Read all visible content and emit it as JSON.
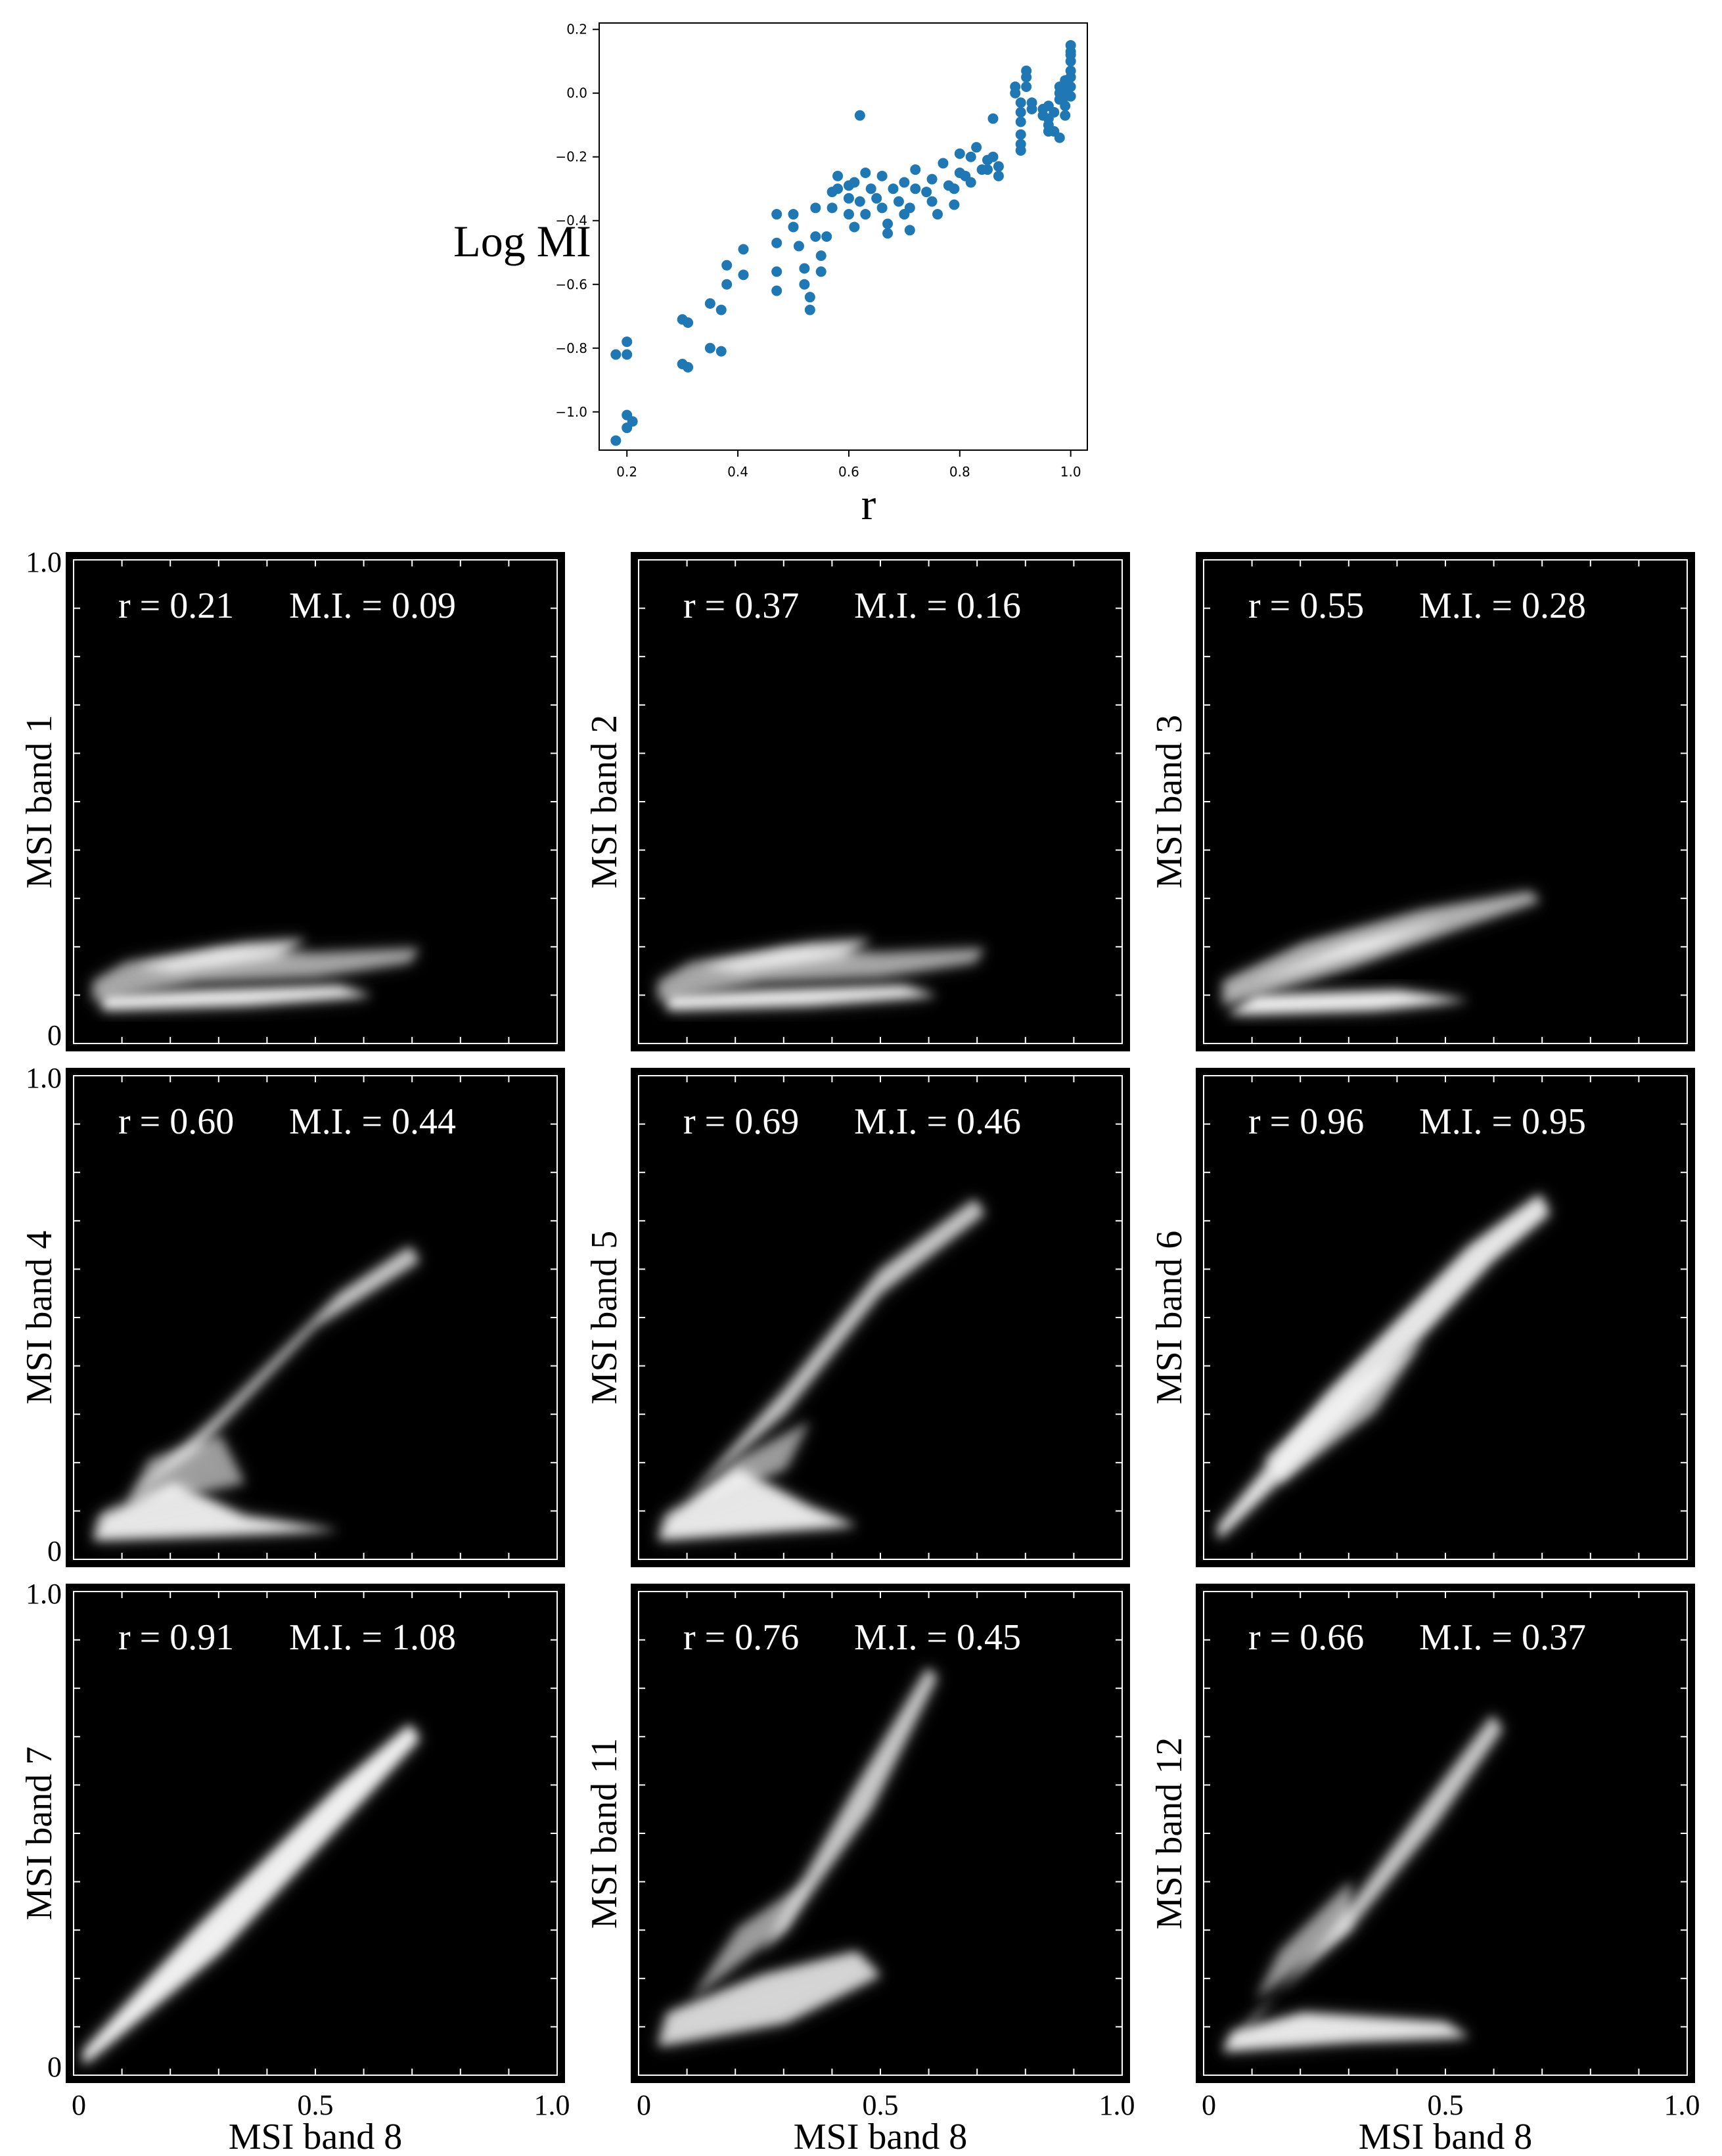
{
  "chart_data": [
    {
      "type": "scatter",
      "id": "summary",
      "xlabel": "r",
      "ylabel": "Log MI",
      "xlim": [
        0.15,
        1.03
      ],
      "ylim": [
        -1.12,
        0.22
      ],
      "xticks": [
        "0.2",
        "0.4",
        "0.6",
        "0.8",
        "1.0"
      ],
      "yticks": [
        "0.2",
        "0.0",
        "−0.2",
        "−0.4",
        "−0.6",
        "−0.8",
        "−1.0"
      ],
      "marker_color": "#1f77b4",
      "points": [
        [
          0.18,
          -1.09
        ],
        [
          0.18,
          -0.82
        ],
        [
          0.2,
          -0.78
        ],
        [
          0.2,
          -0.82
        ],
        [
          0.2,
          -1.01
        ],
        [
          0.2,
          -1.05
        ],
        [
          0.21,
          -1.03
        ],
        [
          0.3,
          -0.71
        ],
        [
          0.31,
          -0.72
        ],
        [
          0.3,
          -0.85
        ],
        [
          0.31,
          -0.86
        ],
        [
          0.35,
          -0.66
        ],
        [
          0.35,
          -0.8
        ],
        [
          0.37,
          -0.81
        ],
        [
          0.37,
          -0.68
        ],
        [
          0.38,
          -0.6
        ],
        [
          0.38,
          -0.54
        ],
        [
          0.41,
          -0.49
        ],
        [
          0.41,
          -0.57
        ],
        [
          0.47,
          -0.38
        ],
        [
          0.47,
          -0.47
        ],
        [
          0.47,
          -0.56
        ],
        [
          0.47,
          -0.62
        ],
        [
          0.5,
          -0.38
        ],
        [
          0.5,
          -0.42
        ],
        [
          0.51,
          -0.48
        ],
        [
          0.52,
          -0.55
        ],
        [
          0.52,
          -0.6
        ],
        [
          0.53,
          -0.64
        ],
        [
          0.53,
          -0.68
        ],
        [
          0.54,
          -0.36
        ],
        [
          0.54,
          -0.45
        ],
        [
          0.55,
          -0.51
        ],
        [
          0.55,
          -0.56
        ],
        [
          0.56,
          -0.45
        ],
        [
          0.57,
          -0.31
        ],
        [
          0.57,
          -0.36
        ],
        [
          0.58,
          -0.26
        ],
        [
          0.58,
          -0.3
        ],
        [
          0.6,
          -0.29
        ],
        [
          0.6,
          -0.33
        ],
        [
          0.6,
          -0.38
        ],
        [
          0.61,
          -0.42
        ],
        [
          0.61,
          -0.28
        ],
        [
          0.62,
          -0.07
        ],
        [
          0.62,
          -0.34
        ],
        [
          0.63,
          -0.38
        ],
        [
          0.63,
          -0.25
        ],
        [
          0.64,
          -0.3
        ],
        [
          0.65,
          -0.33
        ],
        [
          0.66,
          -0.26
        ],
        [
          0.66,
          -0.36
        ],
        [
          0.67,
          -0.41
        ],
        [
          0.67,
          -0.44
        ],
        [
          0.68,
          -0.3
        ],
        [
          0.69,
          -0.34
        ],
        [
          0.7,
          -0.28
        ],
        [
          0.7,
          -0.38
        ],
        [
          0.71,
          -0.36
        ],
        [
          0.71,
          -0.43
        ],
        [
          0.72,
          -0.24
        ],
        [
          0.72,
          -0.3
        ],
        [
          0.74,
          -0.31
        ],
        [
          0.75,
          -0.34
        ],
        [
          0.75,
          -0.27
        ],
        [
          0.76,
          -0.38
        ],
        [
          0.77,
          -0.22
        ],
        [
          0.78,
          -0.29
        ],
        [
          0.79,
          -0.3
        ],
        [
          0.79,
          -0.35
        ],
        [
          0.8,
          -0.25
        ],
        [
          0.8,
          -0.19
        ],
        [
          0.81,
          -0.26
        ],
        [
          0.82,
          -0.28
        ],
        [
          0.82,
          -0.2
        ],
        [
          0.83,
          -0.17
        ],
        [
          0.84,
          -0.24
        ],
        [
          0.85,
          -0.24
        ],
        [
          0.85,
          -0.21
        ],
        [
          0.86,
          -0.08
        ],
        [
          0.86,
          -0.2
        ],
        [
          0.87,
          -0.23
        ],
        [
          0.87,
          -0.26
        ],
        [
          0.9,
          0.02
        ],
        [
          0.9,
          0.0
        ],
        [
          0.91,
          -0.03
        ],
        [
          0.91,
          -0.06
        ],
        [
          0.91,
          -0.09
        ],
        [
          0.91,
          -0.13
        ],
        [
          0.91,
          -0.16
        ],
        [
          0.91,
          -0.18
        ],
        [
          0.92,
          0.05
        ],
        [
          0.92,
          0.07
        ],
        [
          0.92,
          0.02
        ],
        [
          0.93,
          -0.03
        ],
        [
          0.93,
          -0.05
        ],
        [
          0.95,
          -0.05
        ],
        [
          0.95,
          -0.07
        ],
        [
          0.96,
          -0.08
        ],
        [
          0.96,
          -0.1
        ],
        [
          0.96,
          -0.12
        ],
        [
          0.96,
          -0.04
        ],
        [
          0.97,
          -0.06
        ],
        [
          0.97,
          -0.12
        ],
        [
          0.98,
          -0.14
        ],
        [
          0.98,
          -0.02
        ],
        [
          0.98,
          0.02
        ],
        [
          0.98,
          0.0
        ],
        [
          0.99,
          0.04
        ],
        [
          0.99,
          0.01
        ],
        [
          0.99,
          -0.01
        ],
        [
          0.99,
          -0.04
        ],
        [
          0.99,
          -0.07
        ],
        [
          1.0,
          0.05
        ],
        [
          1.0,
          0.07
        ],
        [
          1.0,
          0.1
        ],
        [
          1.0,
          0.12
        ],
        [
          1.0,
          0.13
        ],
        [
          1.0,
          0.15
        ],
        [
          1.0,
          0.02
        ],
        [
          1.0,
          -0.01
        ]
      ]
    },
    {
      "type": "heatmap",
      "id": "density_plots",
      "xlabel": "MSI band 8",
      "xlim": [
        0,
        1.0
      ],
      "ylim": [
        0,
        1.0
      ],
      "xticks": [
        "0",
        "0.5",
        "1.0"
      ],
      "yticks": [
        "0",
        "1.0"
      ],
      "colormap": "grayscale",
      "panels": [
        {
          "ylabel": "MSI band 1",
          "r": "0.21",
          "mi": "0.09",
          "stat_r": "r = 0.21",
          "stat_mi": "M.I. = 0.09"
        },
        {
          "ylabel": "MSI band 2",
          "r": "0.37",
          "mi": "0.16",
          "stat_r": "r = 0.37",
          "stat_mi": "M.I. = 0.16"
        },
        {
          "ylabel": "MSI band 3",
          "r": "0.55",
          "mi": "0.28",
          "stat_r": "r = 0.55",
          "stat_mi": "M.I. = 0.28"
        },
        {
          "ylabel": "MSI band 4",
          "r": "0.60",
          "mi": "0.44",
          "stat_r": "r = 0.60",
          "stat_mi": "M.I. = 0.44"
        },
        {
          "ylabel": "MSI band 5",
          "r": "0.69",
          "mi": "0.46",
          "stat_r": "r = 0.69",
          "stat_mi": "M.I. = 0.46"
        },
        {
          "ylabel": "MSI band 6",
          "r": "0.96",
          "mi": "0.95",
          "stat_r": "r = 0.96",
          "stat_mi": "M.I. = 0.95"
        },
        {
          "ylabel": "MSI band 7",
          "r": "0.91",
          "mi": "1.08",
          "stat_r": "r = 0.91",
          "stat_mi": "M.I. = 1.08"
        },
        {
          "ylabel": "MSI band 11",
          "r": "0.76",
          "mi": "0.45",
          "stat_r": "r = 0.76",
          "stat_mi": "M.I. = 0.45"
        },
        {
          "ylabel": "MSI band 12",
          "r": "0.66",
          "mi": "0.37",
          "stat_r": "r = 0.66",
          "stat_mi": "M.I. = 0.37"
        }
      ]
    }
  ]
}
